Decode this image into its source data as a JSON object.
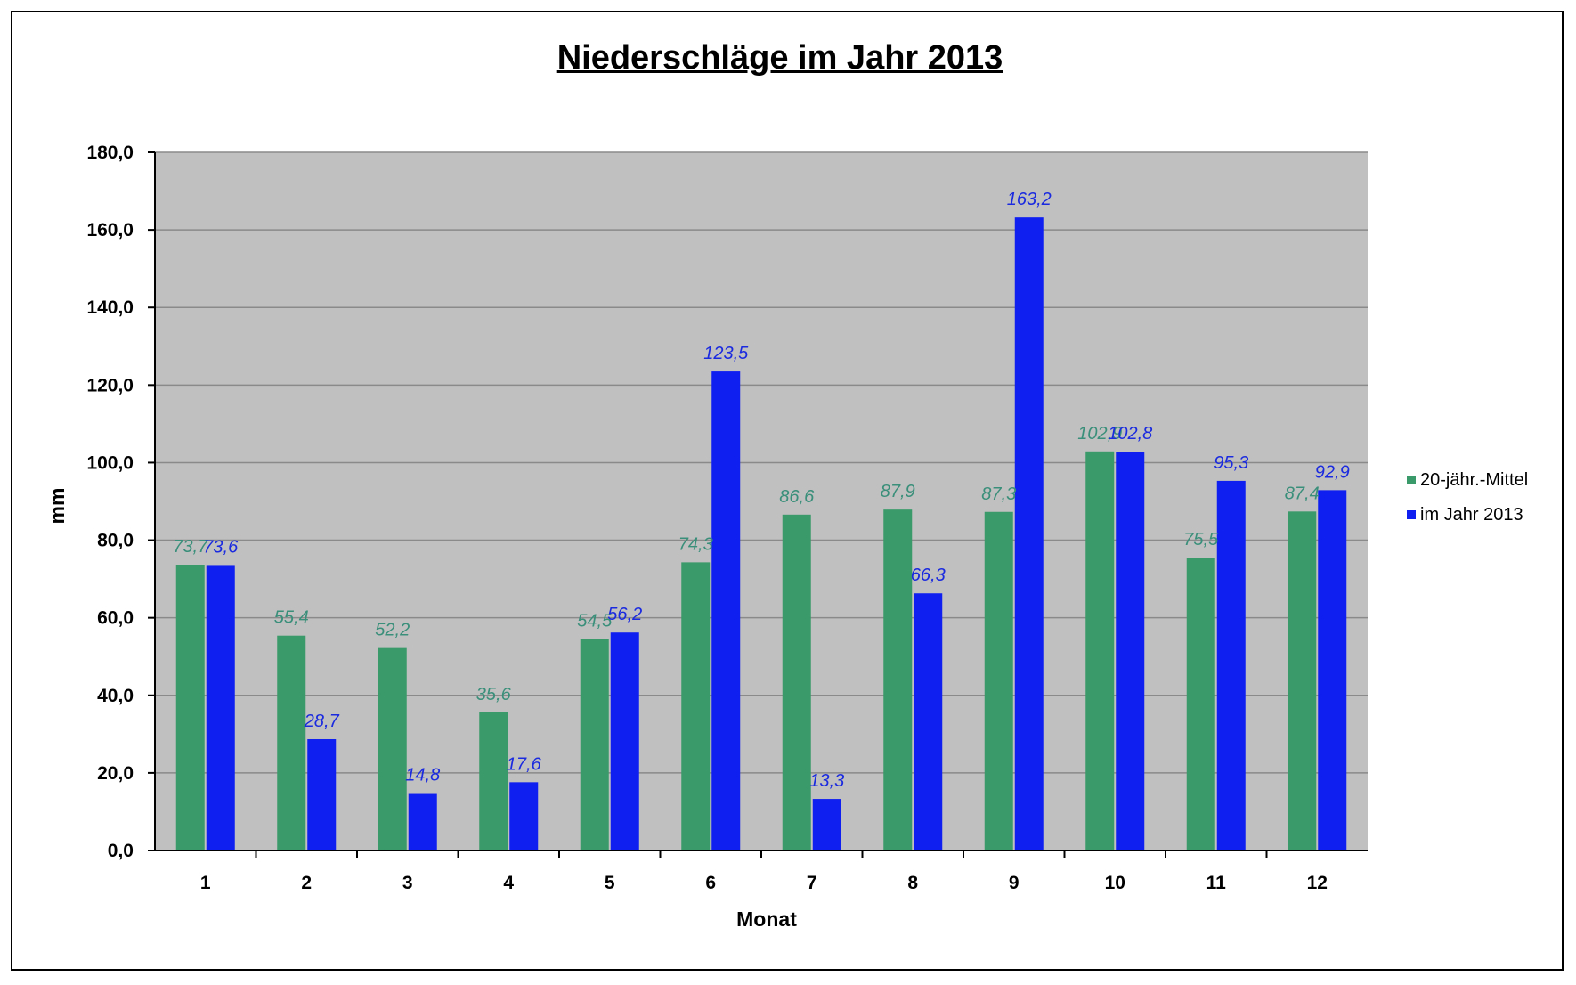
{
  "chart_data": {
    "type": "bar",
    "title": "Niederschläge im Jahr 2013",
    "xlabel": "Monat",
    "ylabel": "mm",
    "categories": [
      "1",
      "2",
      "3",
      "4",
      "5",
      "6",
      "7",
      "8",
      "9",
      "10",
      "11",
      "12"
    ],
    "ylim": [
      0,
      180
    ],
    "yticks": [
      "0,0",
      "20,0",
      "40,0",
      "60,0",
      "80,0",
      "100,0",
      "120,0",
      "140,0",
      "160,0",
      "180,0"
    ],
    "grid": true,
    "legend_position": "right",
    "series": [
      {
        "name": "20-jähr.-Mittel",
        "color": "#3a9a6a",
        "label_color": "#3a8f7a",
        "values": [
          73.7,
          55.4,
          52.2,
          35.6,
          54.5,
          74.3,
          86.6,
          87.9,
          87.3,
          102.9,
          75.5,
          87.4
        ],
        "labels": [
          "73,7",
          "55,4",
          "52,2",
          "35,6",
          "54,5",
          "74,3",
          "86,6",
          "87,9",
          "87,3",
          "102,9",
          "75,5",
          "87,4"
        ]
      },
      {
        "name": "im Jahr 2013",
        "color": "#0f1ff0",
        "label_color": "#1a2adf",
        "values": [
          73.6,
          28.7,
          14.8,
          17.6,
          56.2,
          123.5,
          13.3,
          66.3,
          163.2,
          102.8,
          95.3,
          92.9
        ],
        "labels": [
          "73,6",
          "28,7",
          "14,8",
          "17,6",
          "56,2",
          "123,5",
          "13,3",
          "66,3",
          "163,2",
          "102,8",
          "95,3",
          "92,9"
        ]
      }
    ]
  },
  "colors": {
    "plot_background": "#c0c0c0",
    "gridline": "#8a8a8a"
  }
}
